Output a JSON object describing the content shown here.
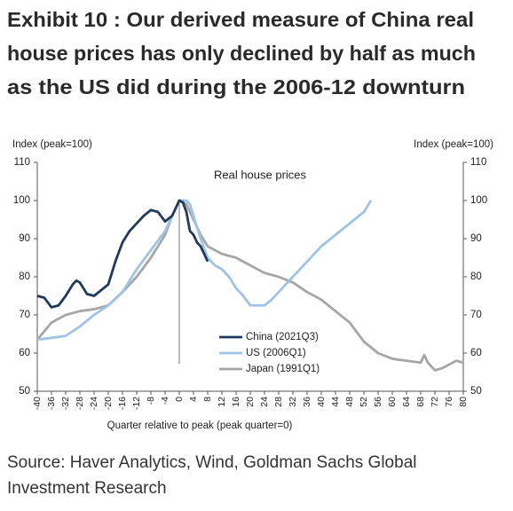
{
  "chart_data": {
    "type": "line",
    "title": [
      "Exhibit 10 : Our derived measure of China real",
      "house prices has only declined by half as much",
      "as the US did during the 2006-12 downturn"
    ],
    "annotation": "Real house prices",
    "y_label": "Index (peak=100)",
    "y2_label": "Index (peak=100)",
    "x_label": "Quarter relative to peak (peak quarter=0)",
    "source": [
      "Source: Haver Analytics, Wind, Goldman Sachs Global",
      "Investment Research"
    ],
    "xlim": [
      -40,
      80
    ],
    "xticks": [
      -40,
      -36,
      -32,
      -28,
      -24,
      -20,
      -16,
      -12,
      -8,
      -4,
      0,
      4,
      8,
      12,
      16,
      20,
      24,
      28,
      32,
      36,
      40,
      44,
      48,
      52,
      56,
      60,
      64,
      68,
      72,
      76,
      80
    ],
    "ylim": [
      50,
      110
    ],
    "yticks": [
      50,
      60,
      70,
      80,
      90,
      100,
      110
    ],
    "y2lim": [
      50,
      110
    ],
    "y2ticks": [
      50,
      60,
      70,
      80,
      90,
      100,
      110
    ],
    "reference_line_x": 0,
    "legend_position": "center",
    "series": [
      {
        "name": "China (2021Q3)",
        "color": "#1f3a5a",
        "x": [
          -40,
          -38,
          -36,
          -34,
          -32,
          -30,
          -29,
          -28,
          -26,
          -24,
          -22,
          -20,
          -18,
          -16,
          -14,
          -12,
          -10,
          -8,
          -6,
          -4,
          -2,
          0,
          1,
          2,
          3,
          4,
          5,
          6,
          7,
          8
        ],
        "values": [
          75,
          74.5,
          72,
          72.5,
          75,
          78,
          79,
          78.5,
          75.5,
          75,
          76.5,
          78,
          84,
          89,
          92,
          94,
          96,
          97.5,
          97,
          94.5,
          96,
          100,
          99.5,
          97,
          92,
          91,
          89,
          88,
          86,
          84
        ]
      },
      {
        "name": "US (2006Q1)",
        "color": "#9ec3e6",
        "x": [
          -40,
          -32,
          -28,
          -24,
          -20,
          -16,
          -12,
          -8,
          -4,
          -2,
          0,
          2,
          3,
          4,
          6,
          8,
          10,
          12,
          14,
          16,
          18,
          20,
          24,
          26,
          28,
          30,
          32,
          36,
          40,
          44,
          48,
          52,
          54
        ],
        "values": [
          63.5,
          64.5,
          67,
          70,
          72.5,
          76,
          82,
          87,
          92,
          96,
          100,
          100,
          99,
          96,
          90,
          85,
          83,
          82,
          80,
          77,
          75,
          72.5,
          72.5,
          74,
          76,
          78,
          80,
          84,
          88,
          91,
          94,
          97,
          100
        ]
      },
      {
        "name": "Japan (1991Q1)",
        "color": "#a6a6a6",
        "x": [
          -40,
          -36,
          -32,
          -28,
          -24,
          -20,
          -16,
          -12,
          -8,
          -4,
          -2,
          0,
          2,
          4,
          6,
          8,
          12,
          16,
          20,
          24,
          28,
          32,
          36,
          40,
          44,
          48,
          52,
          56,
          60,
          64,
          68,
          69,
          70,
          72,
          74,
          76,
          78,
          80
        ],
        "values": [
          63.5,
          68,
          70,
          71,
          71.5,
          72.5,
          76,
          80,
          85,
          91,
          96,
          100,
          99,
          95,
          91,
          88,
          86,
          85,
          83,
          81,
          80,
          78.5,
          76,
          74,
          71,
          68,
          63,
          60,
          58.5,
          58,
          57.5,
          59.5,
          57.5,
          55.5,
          56,
          57,
          58,
          57.5
        ]
      }
    ]
  }
}
